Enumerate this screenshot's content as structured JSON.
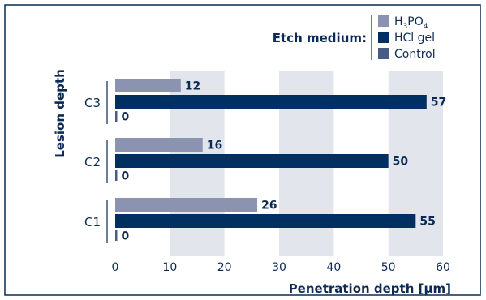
{
  "chart_data": {
    "type": "bar",
    "orientation": "horizontal",
    "categories": [
      "C3",
      "C2",
      "C1"
    ],
    "series": [
      {
        "name": "H₃PO₄",
        "name_parts": [
          "H",
          "3",
          "PO",
          "4"
        ],
        "values": [
          12,
          16,
          26
        ],
        "color": "#8b93b1"
      },
      {
        "name": "HCl gel",
        "values": [
          57,
          50,
          55
        ],
        "color": "#003061"
      },
      {
        "name": "Control",
        "values": [
          0,
          0,
          0
        ],
        "color": "#475b84"
      }
    ],
    "xlabel": "Penetration depth [µm]",
    "ylabel": "Lesion depth",
    "xlim": [
      0,
      60
    ],
    "xticks": [
      0,
      10,
      20,
      30,
      40,
      50,
      60
    ],
    "shaded_bands": [
      [
        10,
        20
      ],
      [
        30,
        40
      ],
      [
        50,
        60
      ]
    ],
    "legend_title": "Etch medium:",
    "legend_position": "top-right"
  },
  "colors": {
    "frame": "#0b2a55",
    "band": "#e3e5ec",
    "text": "#0b2a55"
  }
}
